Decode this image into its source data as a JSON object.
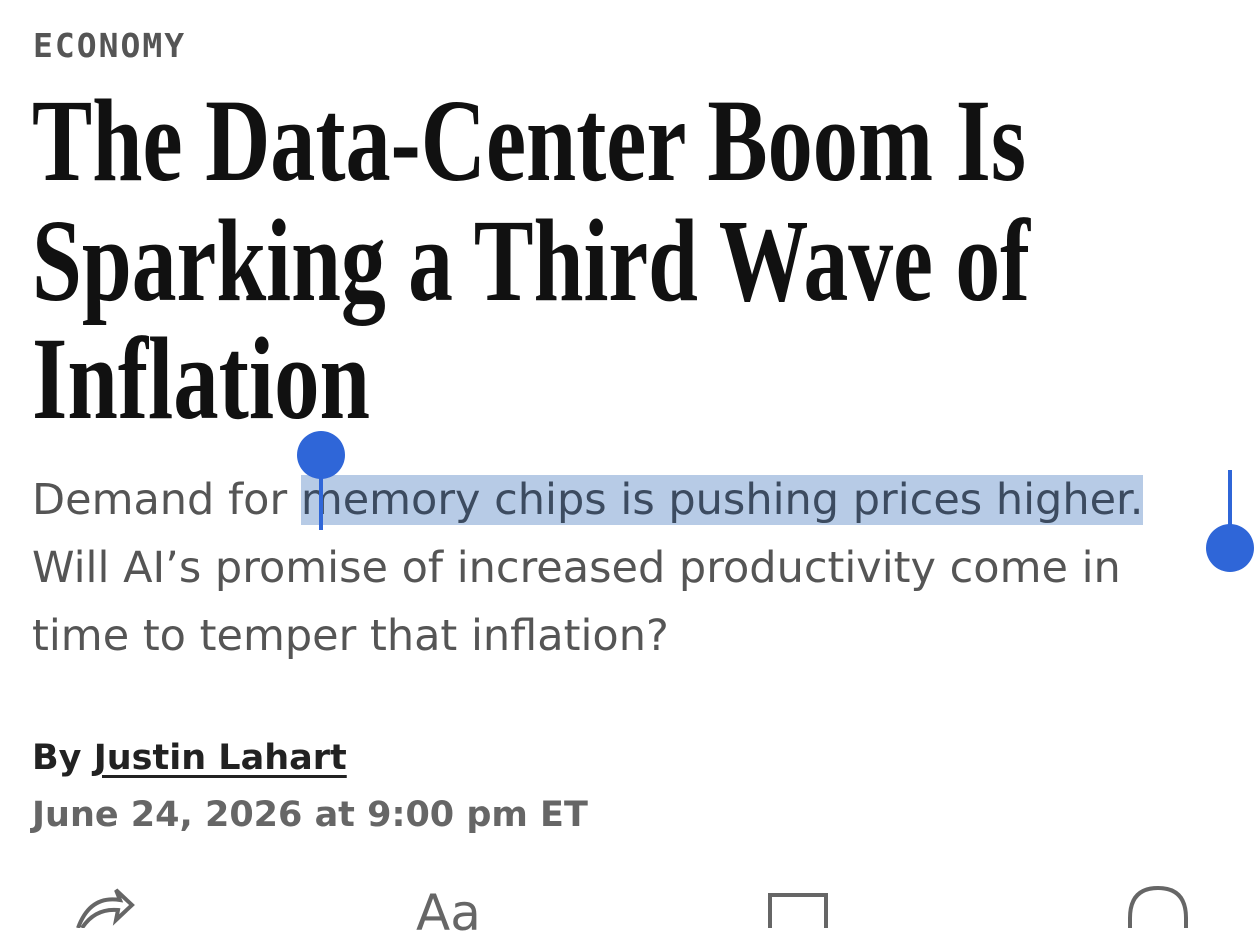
{
  "section": "ECONOMY",
  "headline": {
    "lines": [
      "The Data-Center Boom Is",
      "Sparking a Third Wave of",
      "Inflation"
    ]
  },
  "dek": {
    "before": "Demand for ",
    "selected": "memory chips is pushing prices higher.",
    "after": "Will AI’s promise of increased productivity come in time to temper that inflation?"
  },
  "byline": {
    "prefix": "By",
    "author": "Justin Lahart"
  },
  "date": "June 24, 2026 at 9:00 pm ET",
  "toolbar": {
    "text_size": "Aa"
  }
}
